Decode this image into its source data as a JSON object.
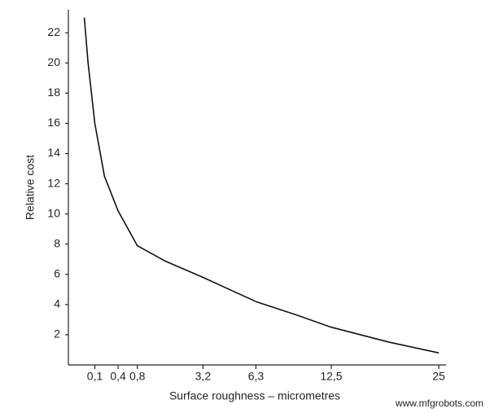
{
  "chart_data": {
    "type": "line",
    "x_label": "Surface roughness – micrometres",
    "y_label": "Relative cost",
    "watermark": "www.mfgrobots.com",
    "x": [
      0.03,
      0.05,
      0.1,
      0.2,
      0.4,
      0.8,
      1.6,
      3.2,
      6.3,
      9.4,
      12.5,
      18.75,
      25
    ],
    "series": [
      {
        "color": "#111111",
        "values": [
          23,
          20,
          16,
          12.5,
          10.2,
          7.9,
          6.9,
          5.8,
          4.2,
          3.3,
          2.5,
          1.5,
          0.8
        ]
      }
    ],
    "xscale": "sqrt",
    "xlim": [
      0,
      26
    ],
    "xticks": [
      {
        "value": 0.1,
        "label": "0,1"
      },
      {
        "value": 0.4,
        "label": "0,4"
      },
      {
        "value": 0.8,
        "label": "0,8"
      },
      {
        "value": 3.2,
        "label": "3,2"
      },
      {
        "value": 6.3,
        "label": "6,3"
      },
      {
        "value": 12.5,
        "label": "12,5"
      },
      25
    ],
    "ylim": [
      0,
      23.2
    ],
    "yticks": [
      2,
      4,
      6,
      8,
      10,
      12,
      14,
      16,
      18,
      20,
      22
    ],
    "grid": false
  }
}
